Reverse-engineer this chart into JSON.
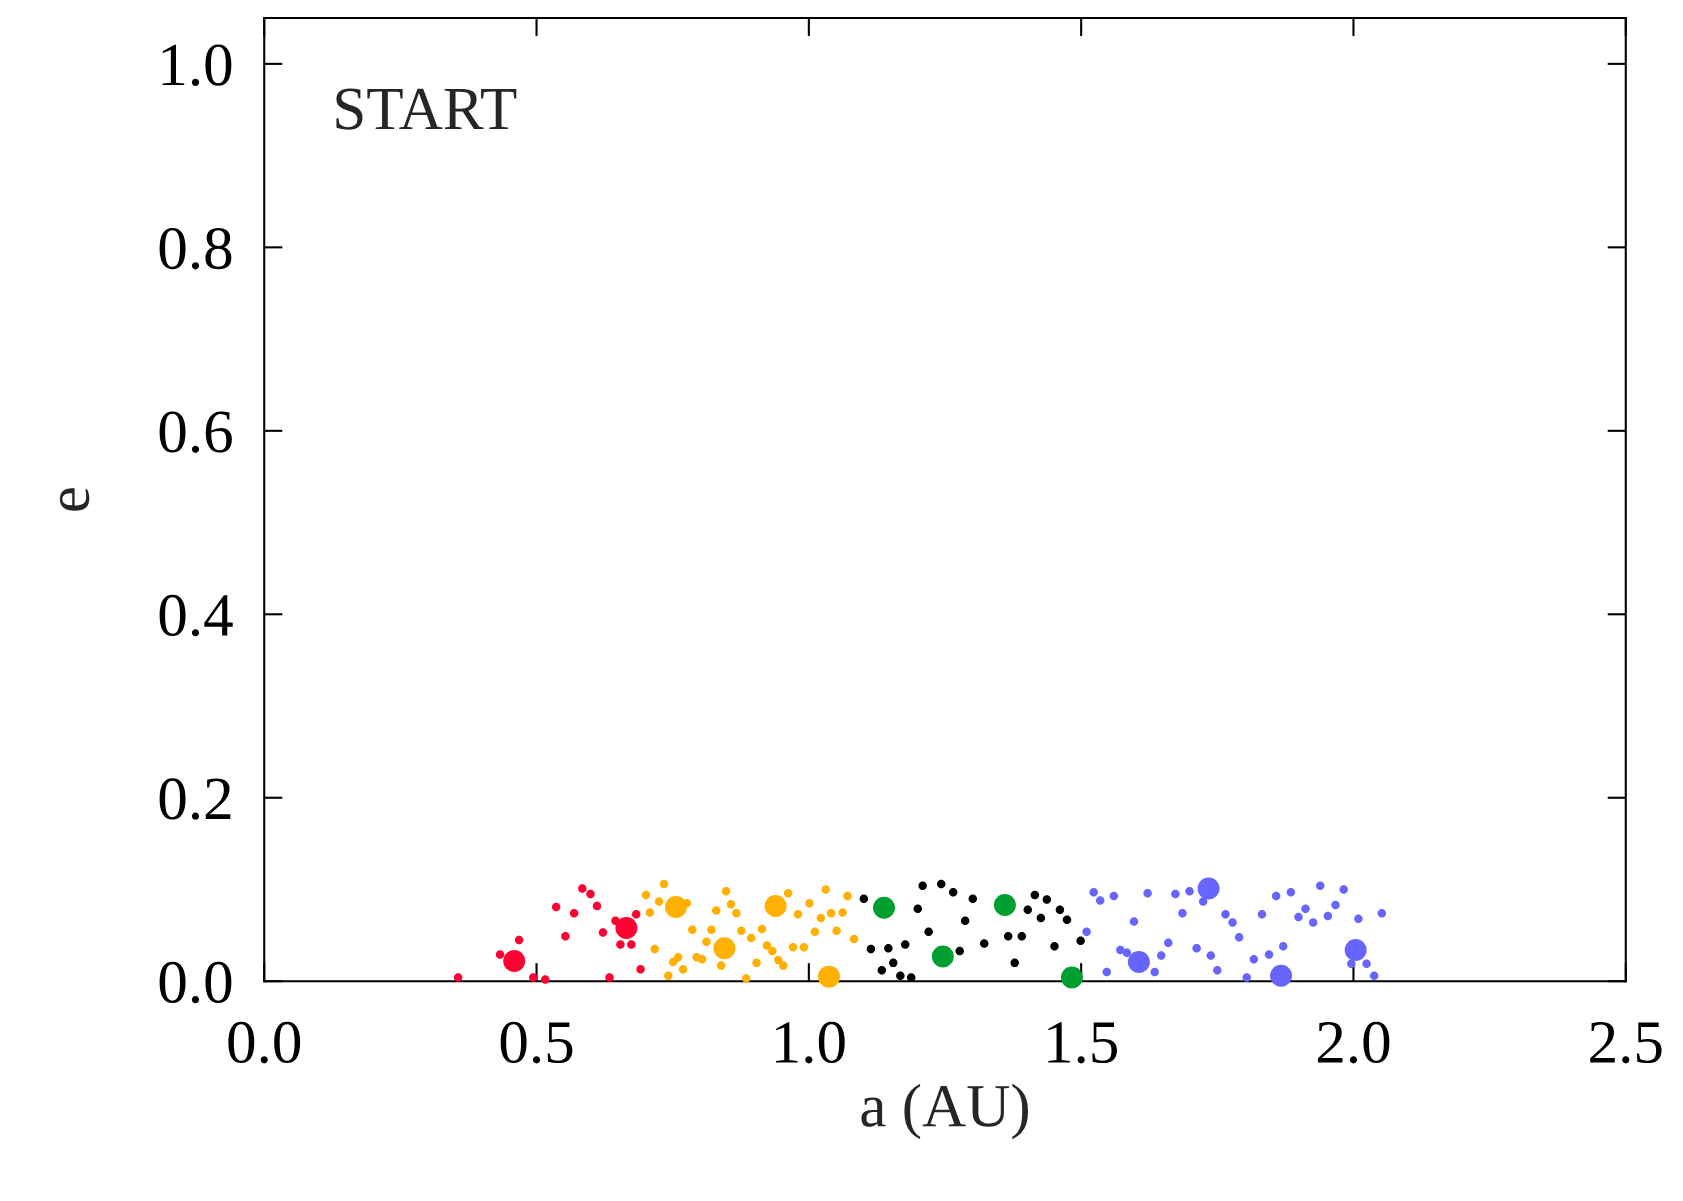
{
  "chart_data": {
    "type": "bubble",
    "xlabel": "a (AU)",
    "ylabel": "e",
    "annotations": [
      "START"
    ],
    "marker": "circle",
    "xlim": [
      0,
      2.5
    ],
    "ylim": [
      0,
      1.05
    ],
    "xticks": [
      {
        "value": 0,
        "label": "0.0"
      },
      {
        "value": 0.5,
        "label": "0.5"
      },
      {
        "value": 1.0,
        "label": "1.0"
      },
      {
        "value": 1.5,
        "label": "1.5"
      },
      {
        "value": 2.0,
        "label": "2.0"
      },
      {
        "value": 2.5,
        "label": "2.5"
      }
    ],
    "yticks": [
      {
        "value": 0,
        "label": "0.0"
      },
      {
        "value": 0.2,
        "label": "0.2"
      },
      {
        "value": 0.4,
        "label": "0.4"
      },
      {
        "value": 0.6,
        "label": "0.6"
      },
      {
        "value": 0.8,
        "label": "0.8"
      },
      {
        "value": 1.0,
        "label": "1.0"
      }
    ],
    "series": [
      {
        "color": "#ff0033",
        "x": [
          0.356,
          0.433,
          0.459,
          0.468,
          0.494,
          0.516,
          0.536,
          0.553,
          0.569,
          0.584,
          0.599,
          0.611,
          0.622,
          0.634,
          0.645,
          0.665,
          0.654,
          0.674,
          0.683,
          0.691
        ],
        "values": [
          0.004,
          0.029,
          0.022,
          0.045,
          0.004,
          0.002,
          0.081,
          0.049,
          0.074,
          0.101,
          0.095,
          0.082,
          0.053,
          0.004,
          0.066,
          0.058,
          0.04,
          0.04,
          0.073,
          0.013
        ],
        "sizes": [
          0.15,
          0.15,
          1,
          0.15,
          0.15,
          0.15,
          0.15,
          0.15,
          0.15,
          0.15,
          0.15,
          0.15,
          0.15,
          0.15,
          0.15,
          1,
          0.15,
          0.15,
          0.15,
          0.15
        ]
      },
      {
        "color": "#ffb000",
        "x": [
          0.701,
          0.708,
          0.717,
          0.725,
          0.734,
          0.742,
          0.751,
          0.76,
          0.756,
          0.776,
          0.769,
          0.786,
          0.794,
          0.804,
          0.812,
          0.821,
          0.83,
          0.845,
          0.839,
          0.848,
          0.857,
          0.867,
          0.876,
          0.885,
          0.894,
          0.904,
          0.914,
          0.923,
          0.933,
          0.944,
          0.953,
          0.939,
          0.962,
          0.971,
          0.98,
          0.991,
          1.001,
          1.011,
          1.022,
          1.031,
          1.041,
          1.051,
          1.037,
          1.062,
          1.071,
          1.083
        ],
        "values": [
          0.094,
          0.075,
          0.035,
          0.087,
          0.106,
          0.006,
          0.021,
          0.026,
          0.081,
          0.085,
          0.013,
          0.056,
          0.026,
          0.024,
          0.043,
          0.056,
          0.077,
          0.036,
          0.017,
          0.098,
          0.084,
          0.074,
          0.055,
          0.003,
          0.047,
          0.02,
          0.057,
          0.039,
          0.033,
          0.023,
          0.017,
          0.082,
          0.096,
          0.037,
          0.073,
          0.037,
          0.085,
          0.054,
          0.069,
          0.1,
          0.074,
          0.055,
          0.005,
          0.075,
          0.093,
          0.046
        ],
        "sizes": [
          0.15,
          0.15,
          0.15,
          0.15,
          0.15,
          0.15,
          0.15,
          0.15,
          1,
          0.15,
          0.15,
          0.15,
          0.15,
          0.15,
          0.15,
          0.15,
          0.15,
          1,
          0.15,
          0.15,
          0.15,
          0.15,
          0.15,
          0.15,
          0.15,
          0.15,
          0.15,
          0.15,
          0.15,
          0.15,
          0.15,
          1,
          0.15,
          0.15,
          0.15,
          0.15,
          0.15,
          0.15,
          0.15,
          0.15,
          0.15,
          0.15,
          1,
          0.15,
          0.15,
          0.15
        ]
      },
      {
        "color": "#000000",
        "x": [
          1.101,
          1.114,
          1.134,
          1.146,
          1.155,
          1.168,
          1.177,
          1.188,
          1.2,
          1.209,
          1.22,
          1.243,
          1.277,
          1.265,
          1.287,
          1.301,
          1.322,
          1.366,
          1.378,
          1.391,
          1.402,
          1.415,
          1.426,
          1.437,
          1.451,
          1.461,
          1.474,
          1.499
        ],
        "values": [
          0.09,
          0.035,
          0.012,
          0.036,
          0.02,
          0.006,
          0.04,
          0.004,
          0.079,
          0.104,
          0.054,
          0.106,
          0.033,
          0.097,
          0.066,
          0.09,
          0.041,
          0.049,
          0.02,
          0.049,
          0.078,
          0.094,
          0.069,
          0.089,
          0.038,
          0.078,
          0.067,
          0.044
        ],
        "sizes": [
          0.15,
          0.15,
          0.15,
          0.15,
          0.15,
          0.15,
          0.15,
          0.15,
          0.15,
          0.15,
          0.15,
          0.15,
          0.15,
          0.15,
          0.15,
          0.15,
          0.15,
          0.15,
          0.15,
          0.15,
          0.15,
          0.15,
          0.15,
          0.15,
          0.15,
          0.15,
          0.15,
          0.15
        ]
      },
      {
        "color": "#00a030",
        "x": [
          1.138,
          1.246,
          1.36,
          1.483
        ],
        "values": [
          0.08,
          0.027,
          0.083,
          0.004
        ],
        "sizes": [
          1,
          1,
          1,
          1
        ]
      },
      {
        "color": "#6666ff",
        "x": [
          1.51,
          1.523,
          1.535,
          1.547,
          1.56,
          1.572,
          1.584,
          1.597,
          1.606,
          1.622,
          1.635,
          1.647,
          1.66,
          1.673,
          1.686,
          1.699,
          1.712,
          1.724,
          1.734,
          1.738,
          1.75,
          1.765,
          1.778,
          1.79,
          1.804,
          1.817,
          1.832,
          1.845,
          1.858,
          1.867,
          1.871,
          1.885,
          1.899,
          1.912,
          1.926,
          1.939,
          1.953,
          1.967,
          1.982,
          2.004,
          1.996,
          2.009,
          2.024,
          2.038,
          2.052
        ],
        "values": [
          0.054,
          0.097,
          0.088,
          0.01,
          0.093,
          0.034,
          0.031,
          0.065,
          0.021,
          0.096,
          0.01,
          0.028,
          0.042,
          0.095,
          0.074,
          0.098,
          0.036,
          0.087,
          0.101,
          0.028,
          0.012,
          0.073,
          0.064,
          0.048,
          0.004,
          0.024,
          0.073,
          0.029,
          0.093,
          0.006,
          0.038,
          0.097,
          0.07,
          0.079,
          0.064,
          0.104,
          0.071,
          0.083,
          0.1,
          0.034,
          0.019,
          0.068,
          0.019,
          0.006,
          0.074
        ],
        "sizes": [
          0.15,
          0.15,
          0.15,
          0.15,
          0.15,
          0.15,
          0.15,
          0.15,
          1,
          0.15,
          0.15,
          0.15,
          0.15,
          0.15,
          0.15,
          0.15,
          0.15,
          0.15,
          1,
          0.15,
          0.15,
          0.15,
          0.15,
          0.15,
          0.15,
          0.15,
          0.15,
          0.15,
          0.15,
          1,
          0.15,
          0.15,
          0.15,
          0.15,
          0.15,
          0.15,
          0.15,
          0.15,
          0.15,
          1,
          0.15,
          0.15,
          0.15,
          0.15,
          0.15
        ]
      }
    ]
  }
}
